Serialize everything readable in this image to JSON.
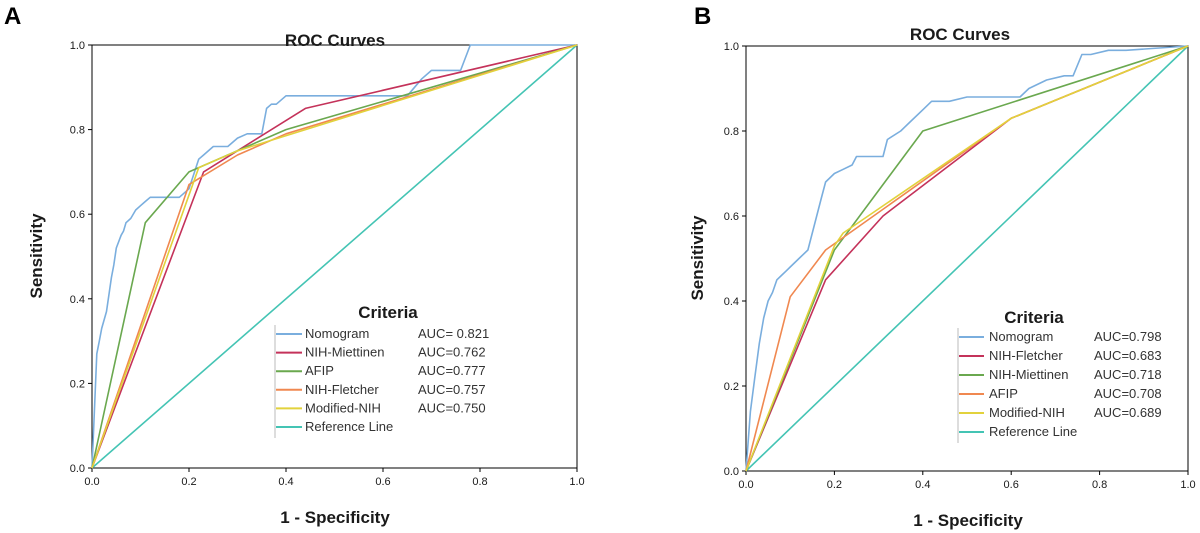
{
  "chart_data": [
    {
      "type": "line",
      "panel_label": "A",
      "title": "ROC Curves",
      "xlabel": "1 - Specificity",
      "ylabel": "Sensitivity",
      "xlim": [
        0,
        1
      ],
      "ylim": [
        0,
        1
      ],
      "x_ticks": [
        "0.0",
        "0.2",
        "0.4",
        "0.6",
        "0.8",
        "1.0"
      ],
      "y_ticks": [
        "0.0",
        "0.2",
        "0.4",
        "0.6",
        "0.8",
        "1.0"
      ],
      "legend_title": "Criteria",
      "legend_position": "lower-right",
      "series": [
        {
          "name": "Nomogram",
          "auc": "AUC= 0.821",
          "color": "#7aaede",
          "x": [
            0,
            0.01,
            0.015,
            0.02,
            0.03,
            0.04,
            0.045,
            0.05,
            0.06,
            0.065,
            0.07,
            0.08,
            0.09,
            0.1,
            0.11,
            0.12,
            0.13,
            0.18,
            0.2,
            0.22,
            0.23,
            0.25,
            0.28,
            0.3,
            0.32,
            0.35,
            0.36,
            0.37,
            0.38,
            0.4,
            0.42,
            0.45,
            0.5,
            0.55,
            0.6,
            0.65,
            0.68,
            0.7,
            0.72,
            0.76,
            0.78,
            1.0
          ],
          "y": [
            0,
            0.27,
            0.3,
            0.33,
            0.37,
            0.45,
            0.48,
            0.52,
            0.55,
            0.56,
            0.58,
            0.59,
            0.61,
            0.62,
            0.63,
            0.64,
            0.64,
            0.64,
            0.66,
            0.73,
            0.74,
            0.76,
            0.76,
            0.78,
            0.79,
            0.79,
            0.85,
            0.86,
            0.86,
            0.88,
            0.88,
            0.88,
            0.88,
            0.88,
            0.88,
            0.88,
            0.92,
            0.94,
            0.94,
            0.94,
            1.0,
            1.0
          ]
        },
        {
          "name": "NIH-Miettinen",
          "auc": "AUC=0.762",
          "color": "#c4325a",
          "x": [
            0,
            0.23,
            0.44,
            1.0
          ],
          "y": [
            0,
            0.7,
            0.85,
            1.0
          ]
        },
        {
          "name": "AFIP",
          "auc": "AUC=0.777",
          "color": "#6aa84f",
          "x": [
            0,
            0.11,
            0.2,
            0.4,
            1.0
          ],
          "y": [
            0,
            0.58,
            0.7,
            0.8,
            1.0
          ]
        },
        {
          "name": "NIH-Fletcher",
          "auc": "AUC=0.757",
          "color": "#f08850",
          "x": [
            0,
            0.2,
            0.3,
            0.4,
            1.0
          ],
          "y": [
            0,
            0.67,
            0.74,
            0.79,
            1.0
          ]
        },
        {
          "name": "Modified-NIH",
          "auc": "AUC=0.750",
          "color": "#e2d23c",
          "x": [
            0,
            0.22,
            0.3,
            1.0
          ],
          "y": [
            0,
            0.71,
            0.75,
            1.0
          ]
        },
        {
          "name": "Reference Line",
          "auc": "",
          "color": "#44c4b4",
          "x": [
            0,
            1.0
          ],
          "y": [
            0,
            1.0
          ]
        }
      ]
    },
    {
      "type": "line",
      "panel_label": "B",
      "title": "ROC Curves",
      "xlabel": "1 - Specificity",
      "ylabel": "Sensitivity",
      "xlim": [
        0,
        1
      ],
      "ylim": [
        0,
        1
      ],
      "x_ticks": [
        "0.0",
        "0.2",
        "0.4",
        "0.6",
        "0.8",
        "1.0"
      ],
      "y_ticks": [
        "0.0",
        "0.2",
        "0.4",
        "0.6",
        "0.8",
        "1.0"
      ],
      "legend_title": "Criteria",
      "legend_position": "lower-right",
      "series": [
        {
          "name": "Nomogram",
          "auc": "AUC=0.798",
          "color": "#7aaede",
          "x": [
            0,
            0.01,
            0.02,
            0.03,
            0.04,
            0.05,
            0.06,
            0.07,
            0.08,
            0.09,
            0.1,
            0.12,
            0.14,
            0.15,
            0.16,
            0.17,
            0.18,
            0.2,
            0.22,
            0.24,
            0.25,
            0.28,
            0.31,
            0.32,
            0.35,
            0.37,
            0.4,
            0.42,
            0.44,
            0.46,
            0.5,
            0.55,
            0.6,
            0.62,
            0.64,
            0.68,
            0.72,
            0.74,
            0.76,
            0.78,
            0.82,
            0.86,
            1.0
          ],
          "y": [
            0,
            0.14,
            0.22,
            0.3,
            0.36,
            0.4,
            0.42,
            0.45,
            0.46,
            0.47,
            0.48,
            0.5,
            0.52,
            0.56,
            0.6,
            0.64,
            0.68,
            0.7,
            0.71,
            0.72,
            0.74,
            0.74,
            0.74,
            0.78,
            0.8,
            0.82,
            0.85,
            0.87,
            0.87,
            0.87,
            0.88,
            0.88,
            0.88,
            0.88,
            0.9,
            0.92,
            0.93,
            0.93,
            0.98,
            0.98,
            0.99,
            0.99,
            1.0
          ]
        },
        {
          "name": "NIH-Fletcher",
          "auc": "AUC=0.683",
          "color": "#c4325a",
          "x": [
            0,
            0.18,
            0.31,
            0.6,
            1.0
          ],
          "y": [
            0,
            0.45,
            0.6,
            0.83,
            1.0
          ]
        },
        {
          "name": "NIH-Miettinen",
          "auc": "AUC=0.718",
          "color": "#6aa84f",
          "x": [
            0,
            0.2,
            0.4,
            1.0
          ],
          "y": [
            0,
            0.52,
            0.8,
            1.0
          ]
        },
        {
          "name": "AFIP",
          "auc": "AUC=0.708",
          "color": "#f08850",
          "x": [
            0,
            0.1,
            0.18,
            0.6,
            1.0
          ],
          "y": [
            0,
            0.41,
            0.52,
            0.83,
            1.0
          ]
        },
        {
          "name": "Modified-NIH",
          "auc": "AUC=0.689",
          "color": "#e2d23c",
          "x": [
            0,
            0.2,
            0.22,
            0.6,
            1.0
          ],
          "y": [
            0,
            0.53,
            0.56,
            0.83,
            1.0
          ]
        },
        {
          "name": "Reference Line",
          "auc": "",
          "color": "#44c4b4",
          "x": [
            0,
            1.0
          ],
          "y": [
            0,
            1.0
          ]
        }
      ]
    }
  ]
}
